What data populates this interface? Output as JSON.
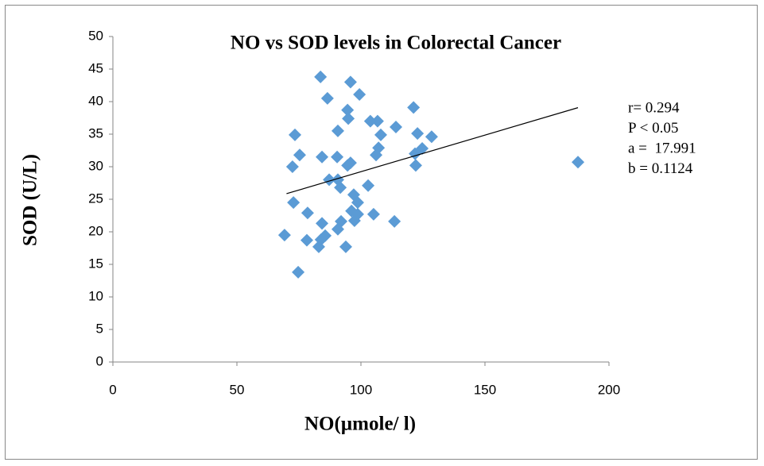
{
  "chart_data": {
    "type": "scatter",
    "title": "NO vs SOD levels in Colorectal Cancer",
    "x_label": "NO(µmole/ l)",
    "y_label": "SOD (U/L)",
    "color": "#5b9bd5",
    "xlim": [
      0,
      200
    ],
    "xticks": [
      0,
      50,
      100,
      150,
      200
    ],
    "ylim": [
      0,
      50
    ],
    "yticks": [
      0,
      5,
      10,
      15,
      20,
      25,
      30,
      35,
      40,
      45,
      50
    ],
    "grid": false,
    "x": [
      83.7,
      95.8,
      86.5,
      99.4,
      121.2,
      94.6,
      94.9,
      103.8,
      106.7,
      114.1,
      122.8,
      73.4,
      90.7,
      108.0,
      128.5,
      107.1,
      124.7,
      106.1,
      121.8,
      75.3,
      84.3,
      90.4,
      95.8,
      94.6,
      122.1,
      72.4,
      187.5,
      87.2,
      90.7,
      91.7,
      102.9,
      97.1,
      98.7,
      72.8,
      78.5,
      96.2,
      98.7,
      105.1,
      84.3,
      92.0,
      97.4,
      113.5,
      90.7,
      69.2,
      85.6,
      83.9,
      78.2,
      83.0,
      93.9,
      74.7
    ],
    "values": [
      43.8,
      43.0,
      40.5,
      41.1,
      39.1,
      38.7,
      37.4,
      37.0,
      37.0,
      36.1,
      35.1,
      34.9,
      35.5,
      34.9,
      34.6,
      32.9,
      32.8,
      31.8,
      32.0,
      31.8,
      31.5,
      31.5,
      30.6,
      30.2,
      30.2,
      30.0,
      30.7,
      28.0,
      28.0,
      26.8,
      27.1,
      25.7,
      24.5,
      24.5,
      22.9,
      23.2,
      22.7,
      22.7,
      21.3,
      21.6,
      21.7,
      21.6,
      20.4,
      19.5,
      19.4,
      18.8,
      18.7,
      17.7,
      17.7,
      13.8
    ],
    "trendline": {
      "x": [
        70,
        187.5
      ],
      "y": [
        25.86,
        39.07
      ],
      "color": "#000000"
    },
    "annotations": [
      "r= 0.294",
      "P < 0.05",
      "a =  17.991",
      "b = 0.1124"
    ]
  }
}
